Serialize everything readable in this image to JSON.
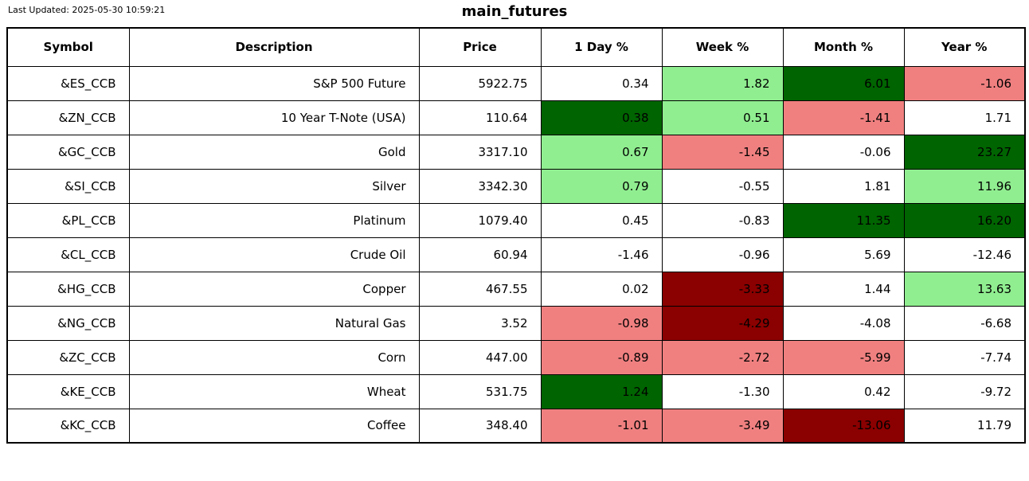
{
  "meta": {
    "last_updated": "Last Updated: 2025-05-30 10:59:21",
    "title": "main_futures"
  },
  "colors": {
    "up_strong": "#006400",
    "up": "#90EE90",
    "down": "#F08080",
    "down_strong": "#8B0000",
    "neutral": "#FFFFFF",
    "border": "#000000",
    "text": "#000000"
  },
  "chart_data": {
    "type": "table",
    "title": "main_futures",
    "columns": [
      "Symbol",
      "Description",
      "Price",
      "1 Day %",
      "Week %",
      "Month %",
      "Year %"
    ],
    "rows": [
      {
        "symbol": "&ES_CCB",
        "description": "S&P 500 Future",
        "price": "5922.75",
        "pcts": [
          {
            "v": "0.34",
            "c": "neutral"
          },
          {
            "v": "1.82",
            "c": "up"
          },
          {
            "v": "6.01",
            "c": "up_strong"
          },
          {
            "v": "-1.06",
            "c": "down"
          }
        ]
      },
      {
        "symbol": "&ZN_CCB",
        "description": "10 Year T-Note (USA)",
        "price": "110.64",
        "pcts": [
          {
            "v": "0.38",
            "c": "up_strong"
          },
          {
            "v": "0.51",
            "c": "up"
          },
          {
            "v": "-1.41",
            "c": "down"
          },
          {
            "v": "1.71",
            "c": "neutral"
          }
        ]
      },
      {
        "symbol": "&GC_CCB",
        "description": "Gold",
        "price": "3317.10",
        "pcts": [
          {
            "v": "0.67",
            "c": "up"
          },
          {
            "v": "-1.45",
            "c": "down"
          },
          {
            "v": "-0.06",
            "c": "neutral"
          },
          {
            "v": "23.27",
            "c": "up_strong"
          }
        ]
      },
      {
        "symbol": "&SI_CCB",
        "description": "Silver",
        "price": "3342.30",
        "pcts": [
          {
            "v": "0.79",
            "c": "up"
          },
          {
            "v": "-0.55",
            "c": "neutral"
          },
          {
            "v": "1.81",
            "c": "neutral"
          },
          {
            "v": "11.96",
            "c": "up"
          }
        ]
      },
      {
        "symbol": "&PL_CCB",
        "description": "Platinum",
        "price": "1079.40",
        "pcts": [
          {
            "v": "0.45",
            "c": "neutral"
          },
          {
            "v": "-0.83",
            "c": "neutral"
          },
          {
            "v": "11.35",
            "c": "up_strong"
          },
          {
            "v": "16.20",
            "c": "up_strong"
          }
        ]
      },
      {
        "symbol": "&CL_CCB",
        "description": "Crude Oil",
        "price": "60.94",
        "pcts": [
          {
            "v": "-1.46",
            "c": "neutral"
          },
          {
            "v": "-0.96",
            "c": "neutral"
          },
          {
            "v": "5.69",
            "c": "neutral"
          },
          {
            "v": "-12.46",
            "c": "neutral"
          }
        ]
      },
      {
        "symbol": "&HG_CCB",
        "description": "Copper",
        "price": "467.55",
        "pcts": [
          {
            "v": "0.02",
            "c": "neutral"
          },
          {
            "v": "-3.33",
            "c": "down_strong"
          },
          {
            "v": "1.44",
            "c": "neutral"
          },
          {
            "v": "13.63",
            "c": "up"
          }
        ]
      },
      {
        "symbol": "&NG_CCB",
        "description": "Natural Gas",
        "price": "3.52",
        "pcts": [
          {
            "v": "-0.98",
            "c": "down"
          },
          {
            "v": "-4.29",
            "c": "down_strong"
          },
          {
            "v": "-4.08",
            "c": "neutral"
          },
          {
            "v": "-6.68",
            "c": "neutral"
          }
        ]
      },
      {
        "symbol": "&ZC_CCB",
        "description": "Corn",
        "price": "447.00",
        "pcts": [
          {
            "v": "-0.89",
            "c": "down"
          },
          {
            "v": "-2.72",
            "c": "down"
          },
          {
            "v": "-5.99",
            "c": "down"
          },
          {
            "v": "-7.74",
            "c": "neutral"
          }
        ]
      },
      {
        "symbol": "&KE_CCB",
        "description": "Wheat",
        "price": "531.75",
        "pcts": [
          {
            "v": "1.24",
            "c": "up_strong"
          },
          {
            "v": "-1.30",
            "c": "neutral"
          },
          {
            "v": "0.42",
            "c": "neutral"
          },
          {
            "v": "-9.72",
            "c": "neutral"
          }
        ]
      },
      {
        "symbol": "&KC_CCB",
        "description": "Coffee",
        "price": "348.40",
        "pcts": [
          {
            "v": "-1.01",
            "c": "down"
          },
          {
            "v": "-3.49",
            "c": "down"
          },
          {
            "v": "-13.06",
            "c": "down_strong"
          },
          {
            "v": "11.79",
            "c": "neutral"
          }
        ]
      }
    ]
  }
}
